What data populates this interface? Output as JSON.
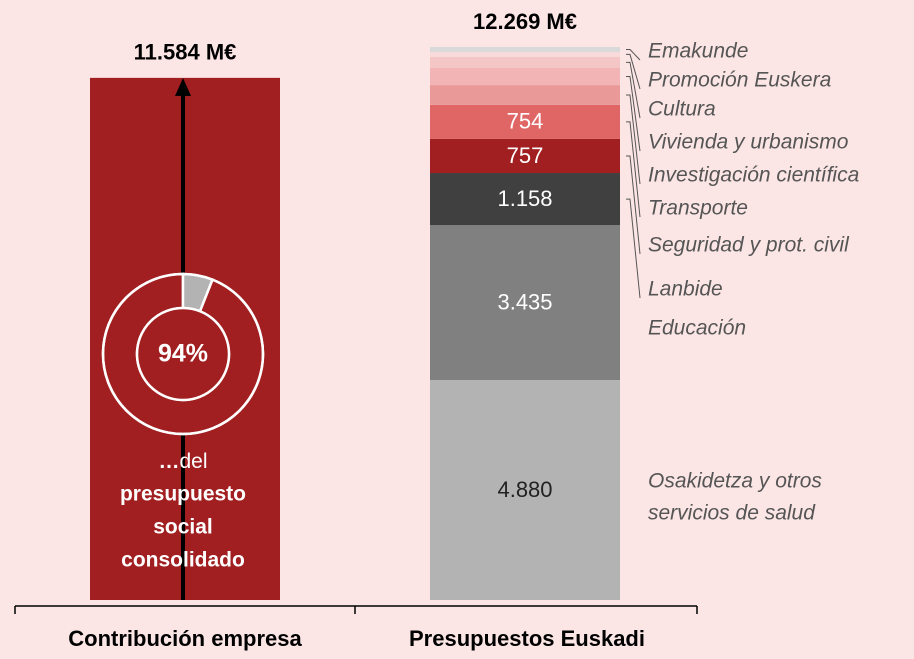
{
  "chart_data": {
    "type": "stacked_bar",
    "bars": [
      {
        "category": "Contribución empresa",
        "total": 11584,
        "total_label": "11.584 M€",
        "segments": [
          {
            "value": 11584,
            "color": "#a11f20"
          }
        ]
      },
      {
        "category": "Presupuestos Euskadi",
        "total": 12269,
        "total_label": "12.269 M€",
        "segments": [
          {
            "name": [
              "Osakidetza y otros",
              "servicios de salud"
            ],
            "value": 4880,
            "label": "4.880",
            "color": "#b3b3b3"
          },
          {
            "name": "Educación",
            "value": 3435,
            "label": "3.435",
            "color": "#808080"
          },
          {
            "name": "Lanbide",
            "value": 1158,
            "label": "1.158",
            "color": "#404040"
          },
          {
            "name": "Seguridad y prot. civil",
            "value": 757,
            "label": "757",
            "color": "#a11f20"
          },
          {
            "name": "Transporte",
            "value": 754,
            "label": "754",
            "color": "#e06666"
          },
          {
            "name": "Investigación científica",
            "value": 440,
            "color": "#ea9999"
          },
          {
            "name": "Vivienda y urbanismo",
            "value": 380,
            "color": "#f2b4b4"
          },
          {
            "name": "Cultura",
            "value": 245,
            "color": "#f5c6c6"
          },
          {
            "name": "Promoción Euskera",
            "value": 110,
            "color": "#f9dada"
          },
          {
            "name": "Emakunde",
            "value": 110,
            "color": "#d9d9d9"
          }
        ]
      }
    ],
    "inset": {
      "type": "pie",
      "values": [
        94,
        6
      ],
      "colors": [
        "#a11f20",
        "#b3b3b3"
      ],
      "label": "94%"
    },
    "caption": [
      "…",
      "del",
      "presupuesto",
      "social",
      "consolidado"
    ]
  }
}
